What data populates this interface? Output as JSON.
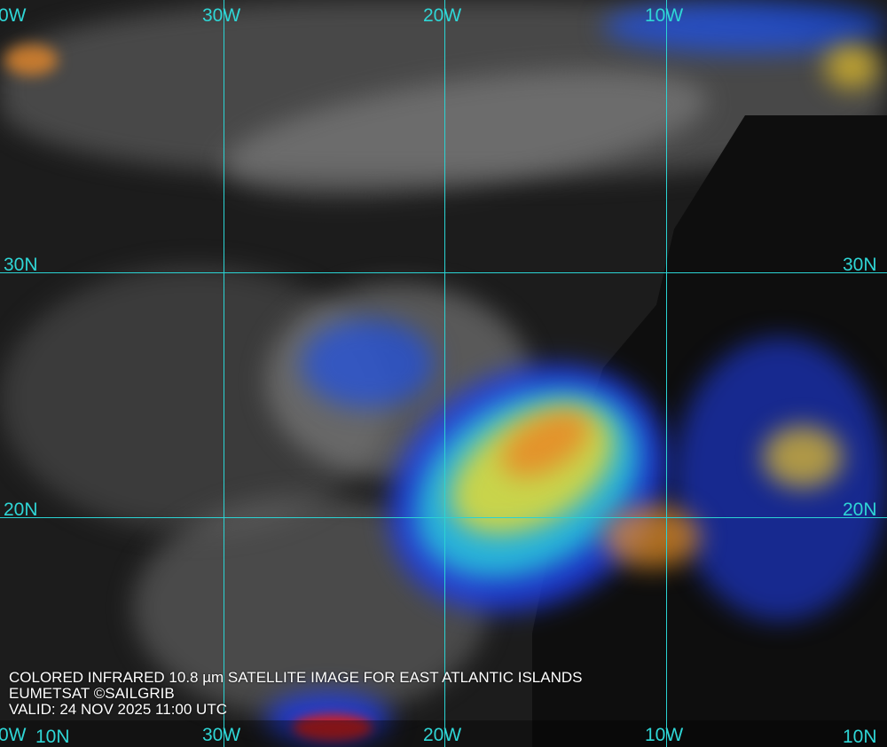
{
  "caption": {
    "line1": "COLORED INFRARED 10.8 µm SATELLITE IMAGE FOR EAST ATLANTIC ISLANDS",
    "line2": "EUMETSAT ©SAILGRIB",
    "line3": "VALID:  24 NOV 2025 11:00 UTC"
  },
  "grid": {
    "top_labels": [
      "0W",
      "30W",
      "20W",
      "10W"
    ],
    "bottom_labels": [
      "0W",
      "30W",
      "20W",
      "10W"
    ],
    "left_labels": [
      "30N",
      "20N",
      "10N"
    ],
    "right_labels": [
      "30N",
      "20N",
      "10N"
    ],
    "color": "#2bd3d3"
  },
  "colors": {
    "cold_cloud_blue": "#1030e0",
    "cyan": "#20d0e0",
    "yellow": "#f0e020",
    "red": "#e02010",
    "background": "#1c1c1c"
  }
}
